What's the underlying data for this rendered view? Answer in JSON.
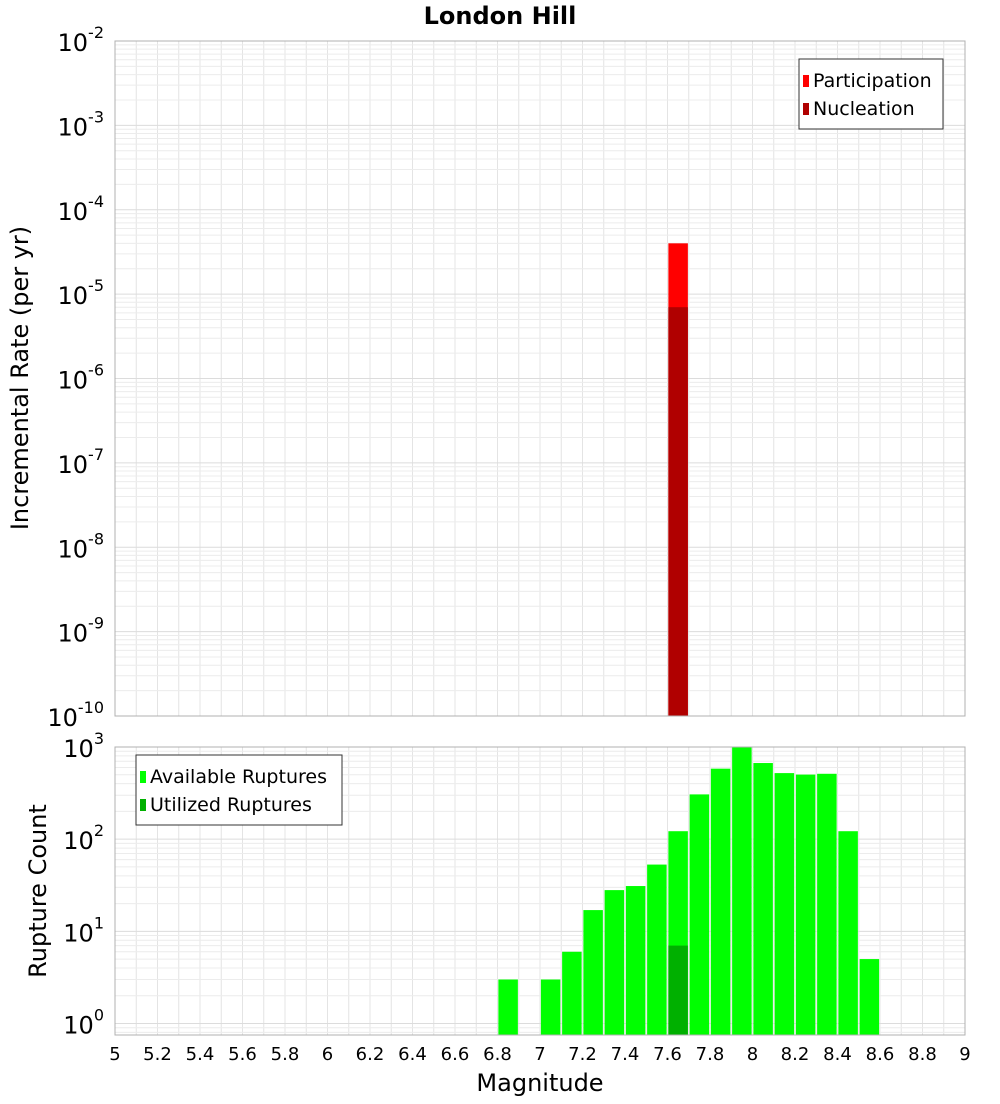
{
  "chart_data": [
    {
      "type": "bar",
      "title": "London Hill",
      "xlabel": "",
      "ylabel": "Incremental Rate (per yr)",
      "scale": "log",
      "xlim": [
        5,
        9
      ],
      "ylim": [
        1e-10,
        0.01
      ],
      "y_ticks": [
        {
          "base": "10",
          "exp": "-10",
          "value": 1e-10
        },
        {
          "base": "10",
          "exp": "-9",
          "value": 1e-09
        },
        {
          "base": "10",
          "exp": "-8",
          "value": 1e-08
        },
        {
          "base": "10",
          "exp": "-7",
          "value": 1e-07
        },
        {
          "base": "10",
          "exp": "-6",
          "value": 1e-06
        },
        {
          "base": "10",
          "exp": "-5",
          "value": 1e-05
        },
        {
          "base": "10",
          "exp": "-4",
          "value": 0.0001
        },
        {
          "base": "10",
          "exp": "-3",
          "value": 0.001
        },
        {
          "base": "10",
          "exp": "-2",
          "value": 0.01
        }
      ],
      "grid": true,
      "legend_position": "top-right",
      "series": [
        {
          "name": "Participation",
          "color": "#ff0000",
          "x": [
            7.65
          ],
          "values": [
            4e-05
          ]
        },
        {
          "name": "Nucleation",
          "color": "#b00000",
          "x": [
            7.65
          ],
          "values": [
            7e-06
          ]
        }
      ]
    },
    {
      "type": "bar",
      "title": "",
      "xlabel": "Magnitude",
      "ylabel": "Rupture Count",
      "scale": "log",
      "xlim": [
        5,
        9
      ],
      "ylim": [
        0.75,
        1000
      ],
      "x_ticks": [
        "5",
        "5.2",
        "5.4",
        "5.6",
        "5.8",
        "6",
        "6.2",
        "6.4",
        "6.6",
        "6.8",
        "7",
        "7.2",
        "7.4",
        "7.6",
        "7.8",
        "8",
        "8.2",
        "8.4",
        "8.6",
        "8.8",
        "9"
      ],
      "y_ticks": [
        {
          "base": "10",
          "exp": "0",
          "value": 1
        },
        {
          "base": "10",
          "exp": "1",
          "value": 10
        },
        {
          "base": "10",
          "exp": "2",
          "value": 100
        },
        {
          "base": "10",
          "exp": "3",
          "value": 1000
        }
      ],
      "grid": true,
      "legend_position": "top-left",
      "series": [
        {
          "name": "Available Ruptures",
          "color": "#00ff00",
          "x": [
            6.85,
            7.05,
            7.15,
            7.25,
            7.35,
            7.45,
            7.55,
            7.65,
            7.75,
            7.85,
            7.95,
            8.05,
            8.15,
            8.25,
            8.35,
            8.45,
            8.55
          ],
          "values": [
            3,
            3,
            6,
            17,
            28,
            31,
            53,
            122,
            306,
            582,
            998,
            670,
            521,
            502,
            512,
            122,
            5
          ]
        },
        {
          "name": "Utilized Ruptures",
          "color": "#00b000",
          "x": [
            7.65
          ],
          "values": [
            7
          ]
        }
      ]
    }
  ]
}
